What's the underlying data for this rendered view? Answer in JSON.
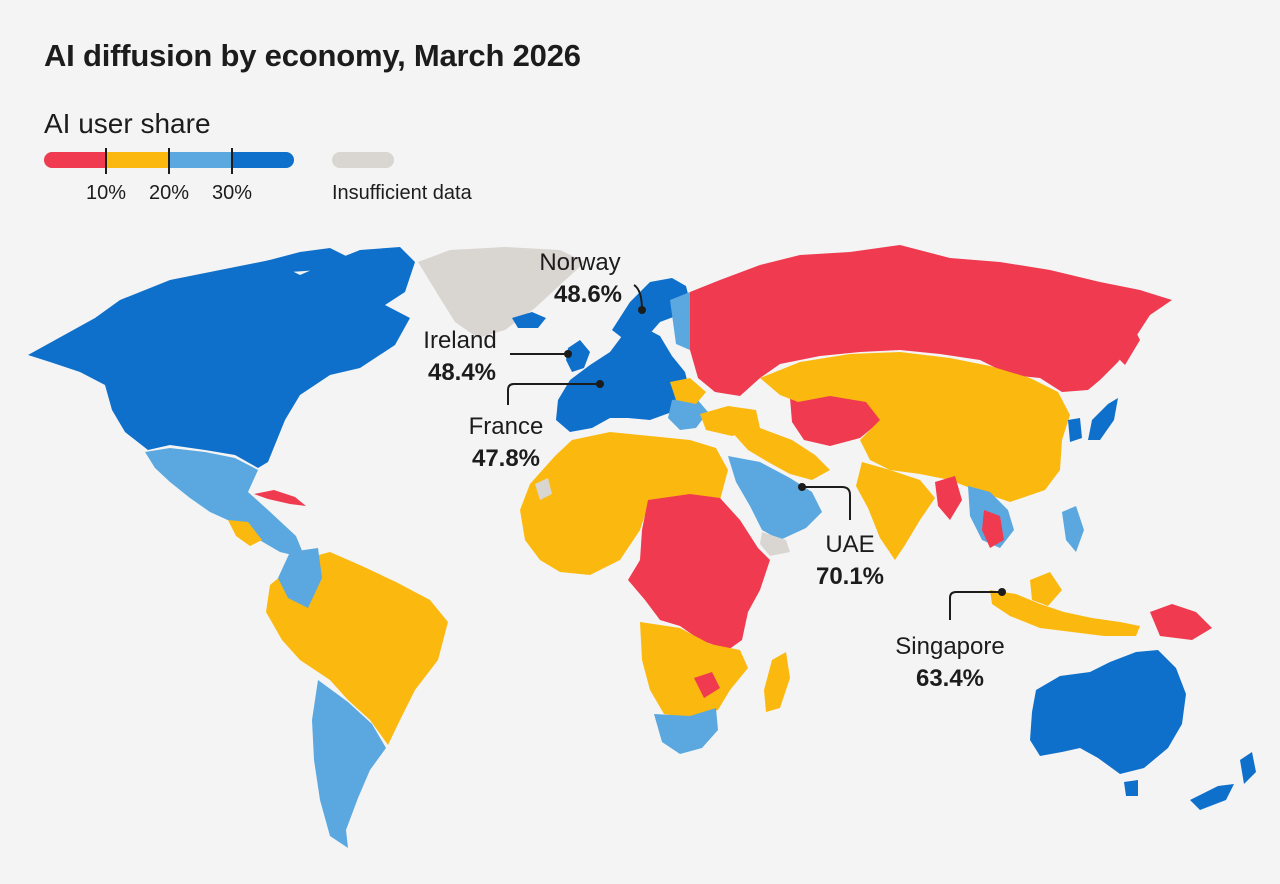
{
  "title": "AI diffusion by economy, March 2026",
  "legend": {
    "title": "AI user share",
    "ticks": [
      "10%",
      "20%",
      "30%"
    ],
    "no_data_label": "Insufficient data",
    "colors": {
      "below_10": "#ef3a4f",
      "10_to_20": "#fbb80f",
      "20_to_30": "#5aa8df",
      "above_30": "#0f70cc",
      "no_data": "#d9d6d2",
      "background": "#f4f4f4"
    }
  },
  "callouts": [
    {
      "name": "Norway",
      "value": "48.6%"
    },
    {
      "name": "Ireland",
      "value": "48.4%"
    },
    {
      "name": "France",
      "value": "47.8%"
    },
    {
      "name": "UAE",
      "value": "70.1%"
    },
    {
      "name": "Singapore",
      "value": "63.4%"
    }
  ],
  "chart_data": {
    "type": "choropleth",
    "title": "AI diffusion by economy, March 2026",
    "legend_title": "AI user share",
    "bins": [
      "<10%",
      "10%–20%",
      "20%–30%",
      ">30%",
      "Insufficient data"
    ],
    "highlighted": [
      {
        "economy": "Norway",
        "share": 48.6
      },
      {
        "economy": "Ireland",
        "share": 48.4
      },
      {
        "economy": "France",
        "share": 47.8
      },
      {
        "economy": "UAE",
        "share": 70.1
      },
      {
        "economy": "Singapore",
        "share": 63.4
      }
    ],
    "regions": [
      {
        "region": "North America",
        "bin": ">30%"
      },
      {
        "region": "Greenland",
        "bin": "Insufficient data"
      },
      {
        "region": "Mexico & Central America",
        "bin": "20%–30%"
      },
      {
        "region": "Cuba",
        "bin": "<10%"
      },
      {
        "region": "Brazil",
        "bin": "10%–20%"
      },
      {
        "region": "Andean countries",
        "bin": "10%–20%"
      },
      {
        "region": "Southern Cone",
        "bin": "20%–30%"
      },
      {
        "region": "Western Europe",
        "bin": ">30%"
      },
      {
        "region": "Russia",
        "bin": "<10%"
      },
      {
        "region": "Central Asia",
        "bin": "<10%"
      },
      {
        "region": "China",
        "bin": "10%–20%"
      },
      {
        "region": "India",
        "bin": "10%–20%"
      },
      {
        "region": "North Africa",
        "bin": "10%–20%"
      },
      {
        "region": "Central & East Africa",
        "bin": "<10%"
      },
      {
        "region": "Southern Africa",
        "bin": "20%–30%"
      },
      {
        "region": "Arabian Peninsula",
        "bin": "20%–30%"
      },
      {
        "region": "Southeast Asia",
        "bin": "10%–20%"
      },
      {
        "region": "Australia & New Zealand",
        "bin": ">30%"
      }
    ]
  }
}
